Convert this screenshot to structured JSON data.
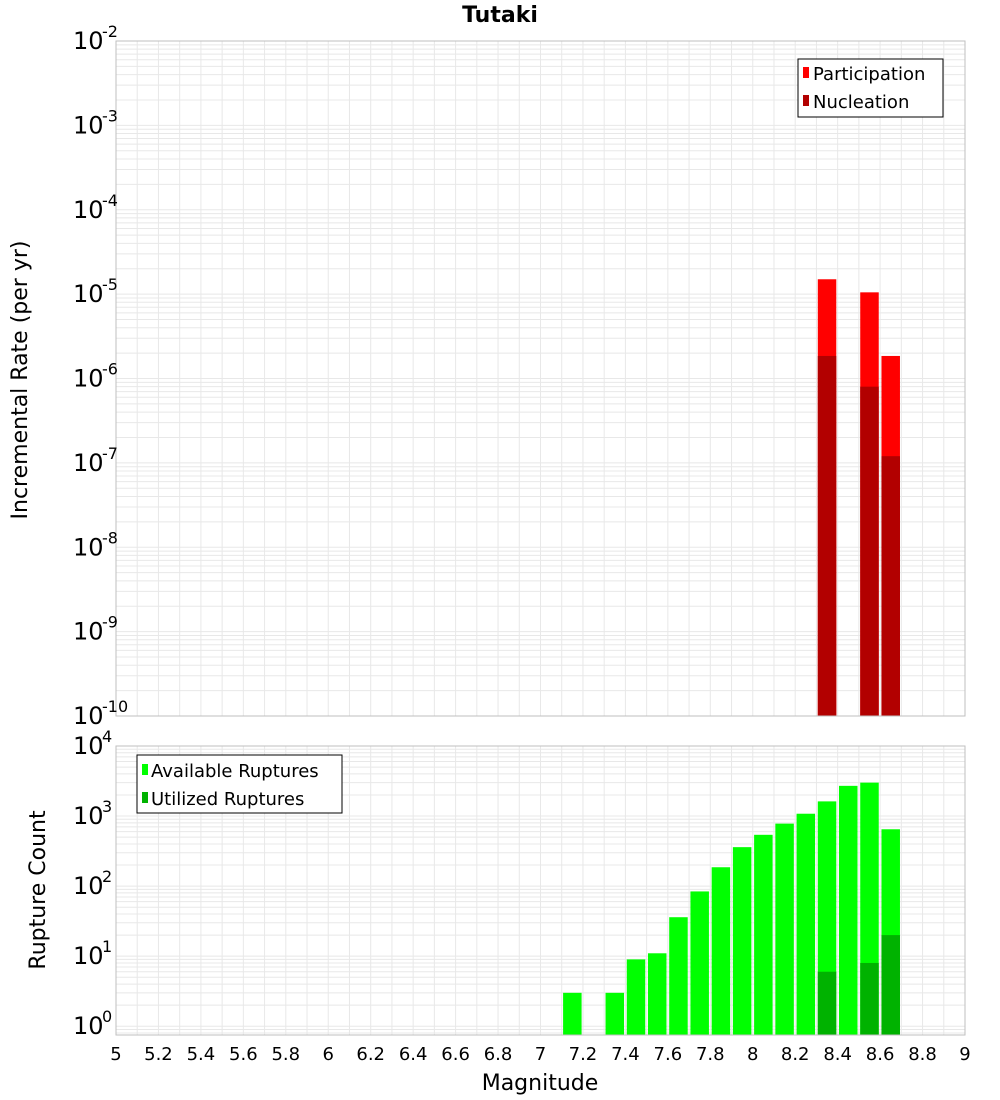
{
  "title": "Tutaki",
  "x_axis_label": "Magnitude",
  "x_ticks": [
    "5",
    "5.2",
    "5.4",
    "5.6",
    "5.8",
    "6",
    "6.2",
    "6.4",
    "6.6",
    "6.8",
    "7",
    "7.2",
    "7.4",
    "7.6",
    "7.8",
    "8",
    "8.2",
    "8.4",
    "8.6",
    "8.8",
    "9"
  ],
  "colors": {
    "participation": "#ff0000",
    "nucleation": "#b20000",
    "available": "#00ff00",
    "utilized": "#00b200",
    "grid": "#e8e8e8",
    "plot_border": "#bfbfbf"
  },
  "chart_data": [
    {
      "type": "bar",
      "title": "Tutaki",
      "xlabel": "Magnitude",
      "ylabel": "Incremental Rate (per yr)",
      "yscale": "log",
      "xlim": [
        5,
        9
      ],
      "ylim": [
        1e-10,
        0.01
      ],
      "y_tick_exponents": [
        "-10",
        "-9",
        "-8",
        "-7",
        "-6",
        "-5",
        "-4",
        "-3",
        "-2"
      ],
      "legend": {
        "position": "top-right",
        "entries": [
          "Participation",
          "Nucleation"
        ]
      },
      "x": [
        8.35,
        8.55,
        8.65
      ],
      "series": [
        {
          "name": "Participation",
          "values": [
            1.5e-05,
            1.05e-05,
            1.85e-06
          ]
        },
        {
          "name": "Nucleation",
          "values": [
            1.85e-06,
            8e-07,
            1.2e-07
          ]
        }
      ],
      "grid": true
    },
    {
      "type": "bar",
      "xlabel": "Magnitude",
      "ylabel": "Rupture Count",
      "yscale": "log",
      "xlim": [
        5,
        9
      ],
      "ylim": [
        0.75,
        10000
      ],
      "y_tick_exponents": [
        "0",
        "1",
        "2",
        "3",
        "4"
      ],
      "legend": {
        "position": "top-left",
        "entries": [
          "Available Ruptures",
          "Utilized Ruptures"
        ]
      },
      "x": [
        7.15,
        7.35,
        7.45,
        7.55,
        7.65,
        7.75,
        7.85,
        7.95,
        8.05,
        8.15,
        8.25,
        8.35,
        8.45,
        8.55,
        8.65
      ],
      "series": [
        {
          "name": "Available Ruptures",
          "values": [
            3,
            3,
            9,
            11,
            36,
            84,
            186,
            360,
            540,
            780,
            1080,
            1620,
            2700,
            3000,
            648
          ]
        },
        {
          "name": "Utilized Ruptures",
          "values": [
            0,
            0,
            0,
            0,
            0,
            0,
            0,
            0,
            0,
            0,
            0,
            6,
            0,
            8,
            20
          ]
        }
      ],
      "grid": true
    }
  ]
}
